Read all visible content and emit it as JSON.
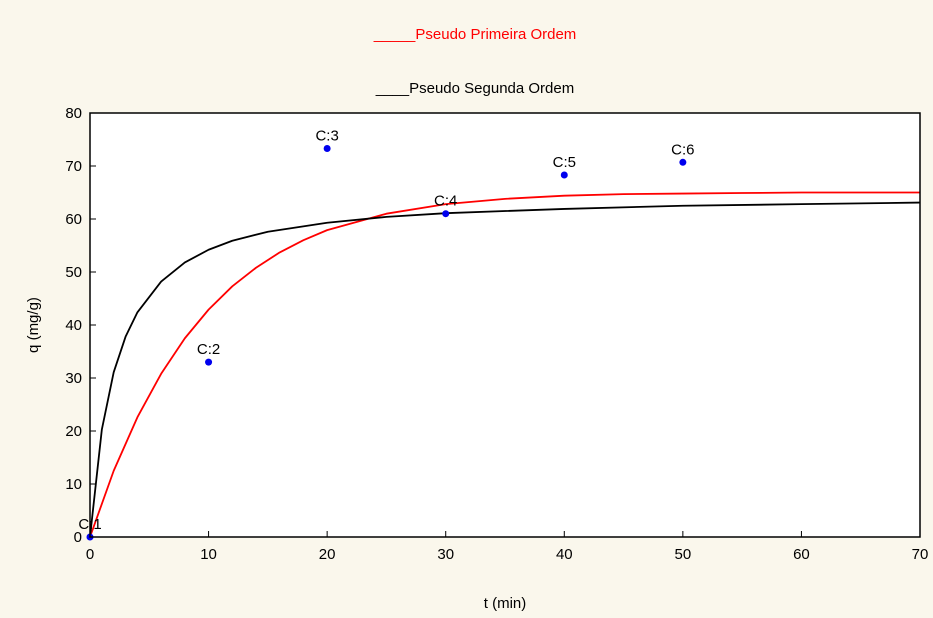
{
  "chart_data": {
    "type": "scatter",
    "xlabel": "t (min)",
    "ylabel": "q (mg/g)",
    "xlim": [
      0,
      70
    ],
    "ylim": [
      0,
      80
    ],
    "xticks": [
      0,
      10,
      20,
      30,
      40,
      50,
      60,
      70
    ],
    "yticks": [
      0,
      10,
      20,
      30,
      40,
      50,
      60,
      70,
      80
    ],
    "grid": false,
    "legend_placement": "top",
    "point_color": "#0000ee",
    "points": [
      {
        "label": "C:1",
        "x": 0,
        "y": 0
      },
      {
        "label": "C:2",
        "x": 10,
        "y": 33
      },
      {
        "label": "C:3",
        "x": 20,
        "y": 73.3
      },
      {
        "label": "C:4",
        "x": 30,
        "y": 61
      },
      {
        "label": "C:5",
        "x": 40,
        "y": 68.3
      },
      {
        "label": "C:6",
        "x": 50,
        "y": 70.7
      }
    ],
    "series": [
      {
        "name": "_____Pseudo Primeira Ordem",
        "color": "#ff0000",
        "x": [
          0,
          2,
          4,
          6,
          8,
          10,
          12,
          14,
          16,
          18,
          20,
          25,
          30,
          35,
          40,
          45,
          50,
          55,
          60,
          65,
          70
        ],
        "y": [
          0,
          12.5,
          22.6,
          30.8,
          37.5,
          42.9,
          47.3,
          50.8,
          53.7,
          56.0,
          57.9,
          61.0,
          62.8,
          63.8,
          64.4,
          64.7,
          64.8,
          64.9,
          65.0,
          65.0,
          65.0
        ]
      },
      {
        "name": "____Pseudo Segunda Ordem",
        "color": "#000000",
        "x": [
          0,
          1,
          2,
          3,
          4,
          6,
          8,
          10,
          12,
          15,
          20,
          25,
          30,
          40,
          50,
          60,
          70
        ],
        "y": [
          0,
          20.3,
          31.1,
          37.8,
          42.4,
          48.2,
          51.8,
          54.2,
          55.9,
          57.6,
          59.3,
          60.4,
          61.1,
          61.9,
          62.5,
          62.8,
          63.1
        ]
      }
    ]
  }
}
